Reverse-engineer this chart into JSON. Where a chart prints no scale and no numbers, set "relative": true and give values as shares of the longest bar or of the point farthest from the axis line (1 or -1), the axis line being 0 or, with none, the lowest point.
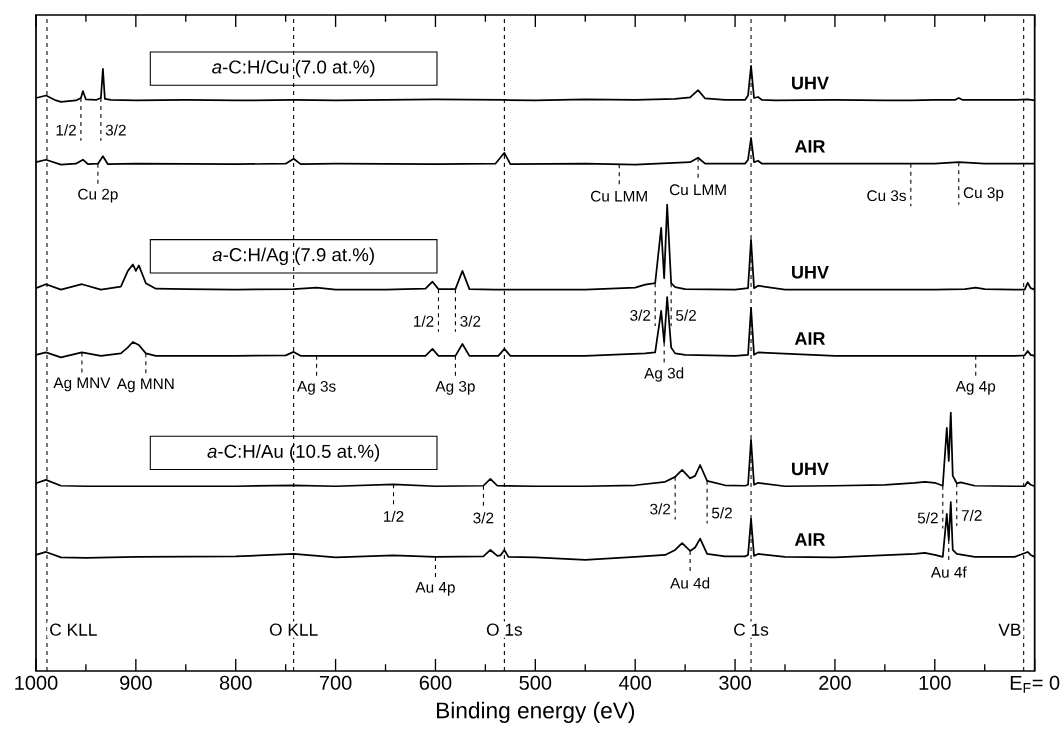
{
  "chart_data": {
    "type": "line",
    "relative": true,
    "xlabel": "Binding energy (eV)",
    "xlim": [
      1000,
      0
    ],
    "xticks": [
      1000,
      900,
      800,
      700,
      600,
      500,
      400,
      300,
      200,
      100,
      {
        "value": 0,
        "label": "E$_{F}$= 0"
      }
    ],
    "series": [
      {
        "name": "UHV",
        "color": "#000000",
        "x": [
          1000,
          990,
          980,
          975,
          960,
          955,
          953,
          950,
          940,
          935,
          933,
          931,
          925,
          900,
          850,
          800,
          742,
          700,
          650,
          600,
          531,
          500,
          450,
          400,
          360,
          345,
          337,
          330,
          310,
          290,
          287,
          284,
          281,
          277,
          273,
          260,
          200,
          150,
          124,
          100,
          80,
          76,
          72,
          50,
          20,
          7,
          0
        ],
        "values": [
          0.935,
          0.94,
          0.93,
          0.927,
          0.93,
          0.935,
          0.949,
          0.932,
          0.931,
          0.935,
          0.994,
          0.933,
          0.931,
          0.93,
          0.931,
          0.93,
          0.931,
          0.93,
          0.931,
          0.932,
          0.931,
          0.93,
          0.932,
          0.931,
          0.933,
          0.936,
          0.951,
          0.934,
          0.931,
          0.931,
          0.94,
          1.0,
          0.935,
          0.937,
          0.931,
          0.93,
          0.931,
          0.93,
          0.93,
          0.931,
          0.931,
          0.935,
          0.931,
          0.931,
          0.931,
          0.932,
          0.93
        ]
      },
      {
        "name": "AIR",
        "color": "#000000",
        "x": [
          1000,
          990,
          975,
          960,
          953,
          948,
          938,
          933,
          928,
          900,
          800,
          750,
          742,
          735,
          700,
          600,
          540,
          531,
          525,
          450,
          400,
          345,
          337,
          330,
          290,
          287,
          284,
          281,
          277,
          273,
          200,
          100,
          76,
          50,
          20,
          0
        ],
        "values": [
          0.805,
          0.81,
          0.8,
          0.802,
          0.81,
          0.801,
          0.802,
          0.817,
          0.801,
          0.802,
          0.801,
          0.802,
          0.812,
          0.801,
          0.802,
          0.801,
          0.802,
          0.824,
          0.801,
          0.802,
          0.8,
          0.805,
          0.814,
          0.802,
          0.802,
          0.81,
          0.854,
          0.805,
          0.808,
          0.802,
          0.802,
          0.802,
          0.805,
          0.802,
          0.802,
          0.802
        ]
      },
      {
        "name": "UHV",
        "color": "#000000",
        "x": [
          1000,
          990,
          975,
          954,
          935,
          915,
          908,
          903,
          900,
          897,
          890,
          880,
          850,
          800,
          742,
          719,
          700,
          650,
          610,
          603,
          597,
          580,
          573,
          566,
          540,
          500,
          450,
          400,
          390,
          380,
          374,
          371,
          368,
          364,
          360,
          350,
          300,
          287,
          284,
          281,
          277,
          250,
          200,
          150,
          100,
          70,
          59,
          50,
          20,
          10,
          7,
          4,
          0
        ],
        "values": [
          0.55,
          0.558,
          0.547,
          0.558,
          0.547,
          0.553,
          0.585,
          0.598,
          0.585,
          0.596,
          0.56,
          0.549,
          0.548,
          0.547,
          0.548,
          0.551,
          0.547,
          0.547,
          0.549,
          0.563,
          0.548,
          0.548,
          0.585,
          0.548,
          0.547,
          0.547,
          0.547,
          0.551,
          0.557,
          0.56,
          0.672,
          0.57,
          0.719,
          0.56,
          0.552,
          0.548,
          0.547,
          0.55,
          0.648,
          0.55,
          0.555,
          0.547,
          0.547,
          0.547,
          0.547,
          0.548,
          0.551,
          0.548,
          0.547,
          0.547,
          0.561,
          0.55,
          0.547
        ]
      },
      {
        "name": "AIR",
        "color": "#000000",
        "x": [
          1000,
          990,
          975,
          954,
          935,
          915,
          908,
          903,
          897,
          890,
          880,
          800,
          750,
          742,
          735,
          700,
          610,
          603,
          597,
          580,
          573,
          566,
          537,
          531,
          525,
          450,
          390,
          380,
          374,
          371,
          368,
          364,
          360,
          350,
          300,
          287,
          284,
          281,
          277,
          200,
          100,
          20,
          10,
          7,
          4,
          0
        ],
        "values": [
          0.415,
          0.42,
          0.41,
          0.42,
          0.413,
          0.418,
          0.43,
          0.441,
          0.435,
          0.418,
          0.413,
          0.413,
          0.414,
          0.421,
          0.413,
          0.413,
          0.413,
          0.427,
          0.413,
          0.413,
          0.437,
          0.413,
          0.413,
          0.427,
          0.413,
          0.413,
          0.418,
          0.42,
          0.504,
          0.44,
          0.532,
          0.43,
          0.418,
          0.415,
          0.413,
          0.415,
          0.51,
          0.415,
          0.42,
          0.413,
          0.413,
          0.413,
          0.414,
          0.423,
          0.415,
          0.413
        ]
      },
      {
        "name": "UHV",
        "color": "#000000",
        "x": [
          1000,
          990,
          975,
          950,
          900,
          800,
          742,
          700,
          642,
          600,
          552,
          545,
          538,
          500,
          450,
          400,
          370,
          360,
          353,
          345,
          340,
          335,
          328,
          310,
          290,
          287,
          284,
          281,
          277,
          250,
          200,
          150,
          120,
          110,
          100,
          92,
          88,
          86,
          84,
          82,
          78,
          74,
          60,
          20,
          10,
          7,
          4,
          0
        ],
        "values": [
          0.155,
          0.162,
          0.15,
          0.149,
          0.149,
          0.149,
          0.151,
          0.149,
          0.153,
          0.149,
          0.15,
          0.164,
          0.15,
          0.149,
          0.149,
          0.151,
          0.158,
          0.168,
          0.182,
          0.165,
          0.17,
          0.192,
          0.16,
          0.151,
          0.15,
          0.152,
          0.243,
          0.152,
          0.156,
          0.149,
          0.15,
          0.152,
          0.156,
          0.158,
          0.156,
          0.15,
          0.267,
          0.2,
          0.298,
          0.17,
          0.155,
          0.157,
          0.15,
          0.149,
          0.149,
          0.158,
          0.152,
          0.149
        ]
      },
      {
        "name": "AIR",
        "color": "#000000",
        "x": [
          1000,
          990,
          975,
          950,
          900,
          800,
          742,
          700,
          642,
          600,
          552,
          545,
          538,
          535,
          531,
          527,
          500,
          450,
          400,
          370,
          360,
          353,
          345,
          340,
          335,
          328,
          310,
          290,
          287,
          284,
          281,
          277,
          250,
          200,
          120,
          110,
          100,
          92,
          88,
          86,
          84,
          82,
          78,
          60,
          20,
          7,
          4,
          0
        ],
        "values": [
          0.01,
          0.016,
          0.005,
          0.004,
          0.006,
          0.007,
          0.012,
          0.005,
          0.009,
          0.006,
          0.007,
          0.02,
          0.008,
          0.009,
          0.02,
          0.006,
          0.005,
          0.0,
          0.006,
          0.01,
          0.02,
          0.034,
          0.018,
          0.025,
          0.043,
          0.012,
          0.007,
          0.007,
          0.01,
          0.083,
          0.008,
          0.012,
          0.006,
          0.005,
          0.012,
          0.014,
          0.01,
          0.006,
          0.093,
          0.04,
          0.117,
          0.02,
          0.012,
          0.006,
          0.006,
          0.016,
          0.01,
          0.006
        ]
      }
    ],
    "ref_lines": [
      {
        "axis": "x",
        "value": 989,
        "label": "C KLL",
        "line_style": "dashed"
      },
      {
        "axis": "x",
        "value": 742,
        "label": "O KLL",
        "line_style": "dashed"
      },
      {
        "axis": "x",
        "value": 531,
        "label": "O 1s",
        "line_style": "dashed"
      },
      {
        "axis": "x",
        "value": 284,
        "label": "C 1s",
        "line_style": "dashed"
      },
      {
        "axis": "x",
        "value": 11,
        "label": "VB",
        "line_style": "dashed"
      }
    ],
    "annotations": [
      "*a*-C:H/Cu (7.0 at.%)",
      "*a*-C:H/Ag (7.9 at.%)",
      "*a*-C:H/Au (10.5 at.%)",
      {
        "text": "1/2",
        "x": 955,
        "y": 0.935
      },
      {
        "text": "3/2",
        "x": 935,
        "y": 0.935
      },
      {
        "text": "Cu 2p",
        "x": 938,
        "y": 0.802
      },
      {
        "text": "Cu LMM",
        "x": 416,
        "y": 0.801
      },
      {
        "text": "Cu LMM",
        "x": 337,
        "y": 0.814
      },
      {
        "text": "Cu 3s",
        "x": 124,
        "y": 0.802
      },
      {
        "text": "Cu 3p",
        "x": 76,
        "y": 0.805
      },
      {
        "text": "1/2",
        "x": 597,
        "y": 0.548
      },
      {
        "text": "3/2",
        "x": 580,
        "y": 0.548
      },
      {
        "text": "3/2",
        "x": 380,
        "y": 0.56
      },
      {
        "text": "5/2",
        "x": 364,
        "y": 0.56
      },
      {
        "text": "Ag MNV",
        "x": 954,
        "y": 0.42
      },
      {
        "text": "Ag MNN",
        "x": 890,
        "y": 0.418
      },
      {
        "text": "Ag 3s",
        "x": 719,
        "y": 0.413
      },
      {
        "text": "Ag 3p",
        "x": 580,
        "y": 0.413
      },
      {
        "text": "Ag 3d",
        "x": 371,
        "y": 0.44
      },
      {
        "text": "Ag 4p",
        "x": 59,
        "y": 0.413
      },
      {
        "text": "1/2",
        "x": 642,
        "y": 0.153
      },
      {
        "text": "3/2",
        "x": 552,
        "y": 0.15
      },
      {
        "text": "3/2",
        "x": 360,
        "y": 0.168
      },
      {
        "text": "5/2",
        "x": 328,
        "y": 0.16
      },
      {
        "text": "5/2",
        "x": 92,
        "y": 0.15
      },
      {
        "text": "7/2",
        "x": 78,
        "y": 0.155
      },
      {
        "text": "Au 4p",
        "x": 600,
        "y": 0.006
      },
      {
        "text": "Au 4d",
        "x": 345,
        "y": 0.018
      },
      {
        "text": "Au 4f",
        "x": 86,
        "y": 0.04
      }
    ]
  }
}
